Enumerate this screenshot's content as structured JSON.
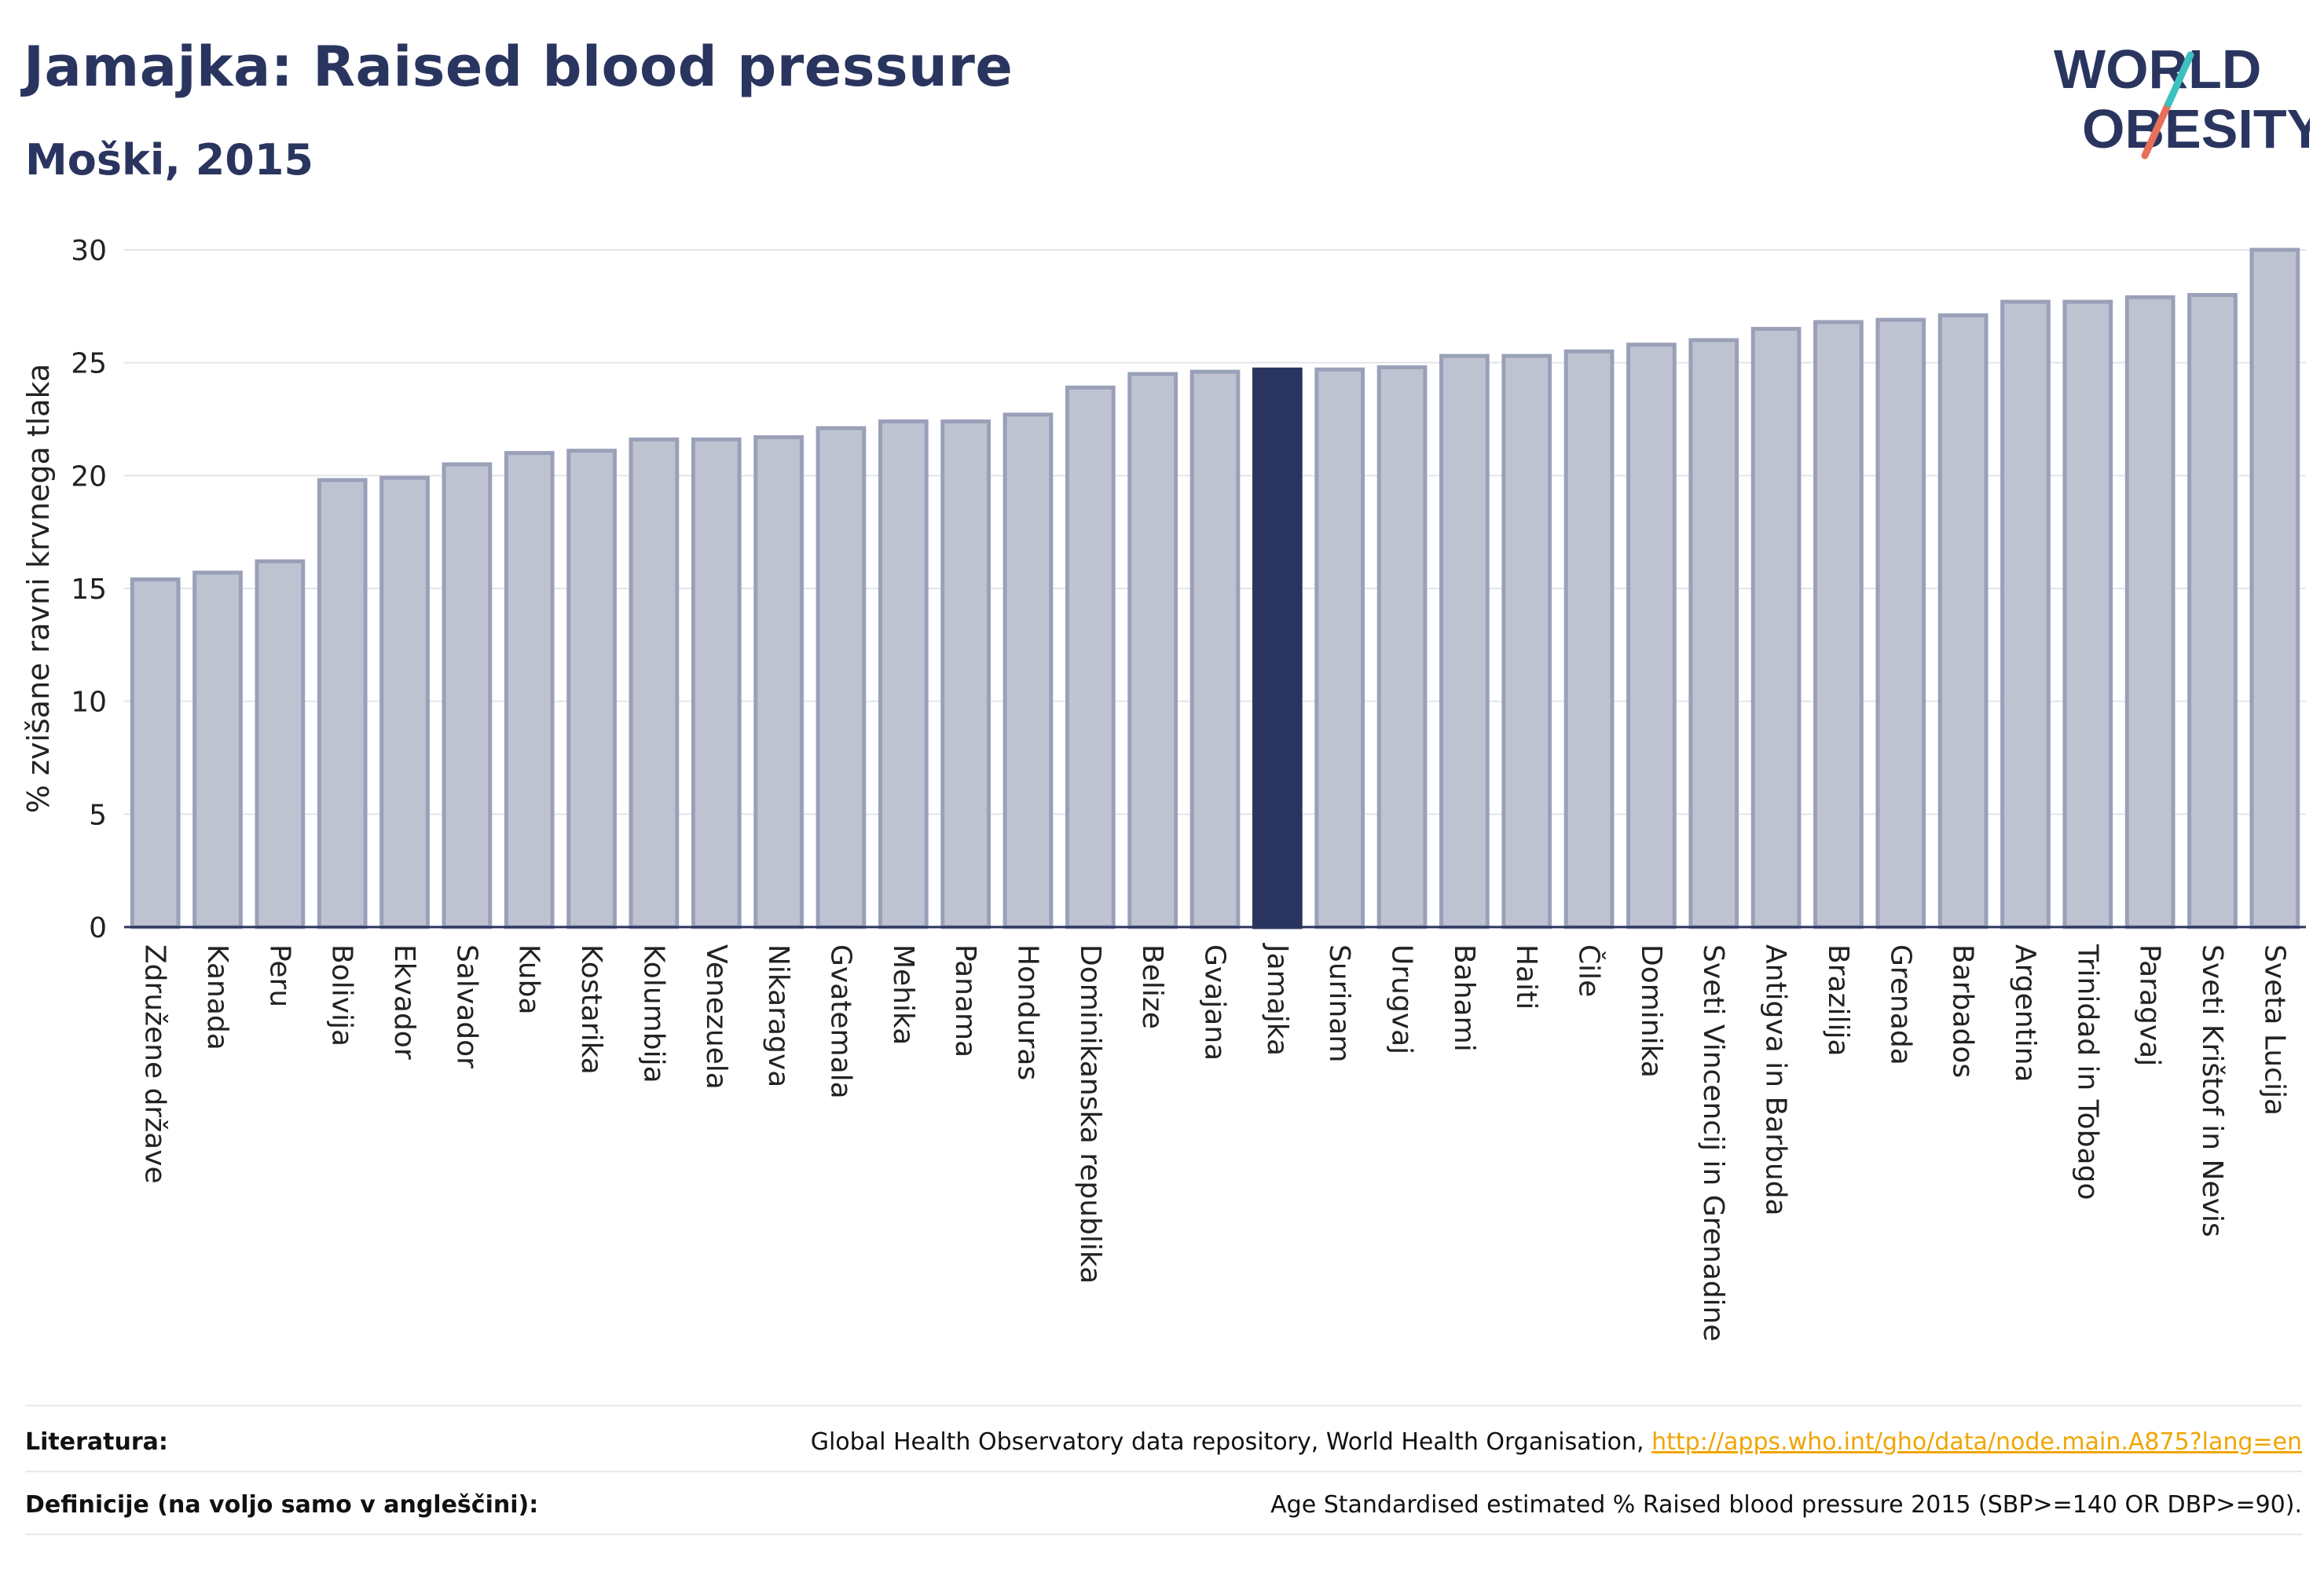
{
  "header": {
    "title": "Jamajka: Raised blood pressure",
    "subtitle": "Moški, 2015"
  },
  "logo": {
    "line1": "WORLD",
    "line2": "OBESITY"
  },
  "colors": {
    "bar": "#bfc3d1",
    "bar_border": "#9aa0b8",
    "highlight": "#2a355f",
    "title": "#2a355f",
    "link": "#f0a500"
  },
  "chart_data": {
    "type": "bar",
    "title": "Jamajka: Raised blood pressure",
    "subtitle": "Moški, 2015",
    "ylabel": "% zvišane ravni krvnega tlaka",
    "xlabel": "",
    "ylim": [
      0,
      30
    ],
    "yticks": [
      0,
      5,
      10,
      15,
      20,
      25,
      30
    ],
    "grid": true,
    "highlight": "Jamajka",
    "categories": [
      "Združene države",
      "Kanada",
      "Peru",
      "Bolivija",
      "Ekvador",
      "Salvador",
      "Kuba",
      "Kostarika",
      "Kolumbija",
      "Venezuela",
      "Nikaragva",
      "Gvatemala",
      "Mehika",
      "Panama",
      "Honduras",
      "Dominikanska republika",
      "Belize",
      "Gvajana",
      "Jamajka",
      "Surinam",
      "Urugvaj",
      "Bahami",
      "Haiti",
      "Čile",
      "Dominika",
      "Sveti Vincencij in Grenadine",
      "Antigva in Barbuda",
      "Brazilija",
      "Grenada",
      "Barbados",
      "Argentina",
      "Trinidad in Tobago",
      "Paragvaj",
      "Sveti Krištof in Nevis",
      "Sveta Lucija"
    ],
    "values": [
      15.4,
      15.7,
      16.2,
      19.8,
      19.9,
      20.5,
      21.0,
      21.1,
      21.6,
      21.6,
      21.7,
      22.1,
      22.4,
      22.4,
      22.7,
      23.9,
      24.5,
      24.6,
      24.7,
      24.7,
      24.8,
      25.3,
      25.3,
      25.5,
      25.8,
      26.0,
      26.5,
      26.8,
      26.9,
      27.1,
      27.7,
      27.7,
      27.9,
      28.0,
      30.0
    ]
  },
  "footer": {
    "literature_label": "Literatura:",
    "literature_text": "Global Health Observatory data repository, World Health Organisation,",
    "literature_link": "http://apps.who.int/gho/data/node.main.A875?lang=en",
    "definitions_label": "Definicije (na voljo samo v angleščini):",
    "definitions_text": "Age Standardised estimated % Raised blood pressure 2015 (SBP>=140 OR DBP>=90)."
  }
}
